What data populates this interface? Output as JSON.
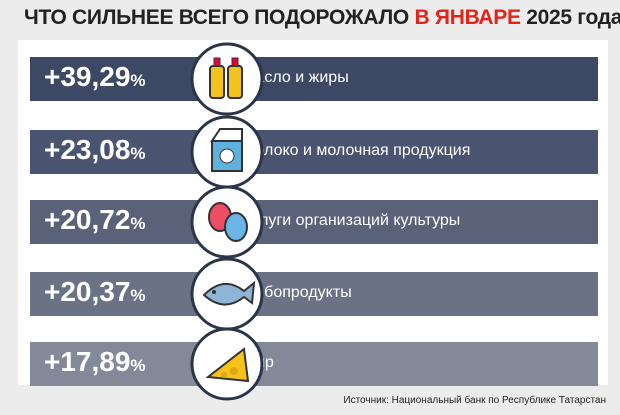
{
  "header": {
    "title_parts": [
      "ЧТО СИЛЬНЕЕ ВСЕГО ПОДОРОЖАЛО ",
      "В ЯНВАРЕ",
      " 2025 года"
    ]
  },
  "rows": [
    {
      "value": "+39,29",
      "unit": "%",
      "label": "Масло и жиры"
    },
    {
      "value": "+23,08",
      "unit": "%",
      "label": "Молоко и молочная продукция"
    },
    {
      "value": "+20,72",
      "unit": "%",
      "label": "Услуги организаций культуры"
    },
    {
      "value": "+20,37",
      "unit": "%",
      "label": "Рыбопродукты"
    },
    {
      "value": "+17,89",
      "unit": "%",
      "label": "Сыр"
    }
  ],
  "source": "Источник: Национальный банк по Республике Татарстан"
}
